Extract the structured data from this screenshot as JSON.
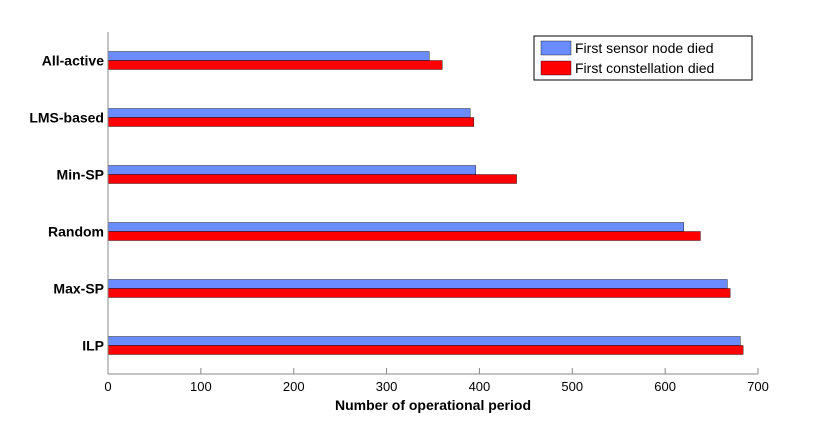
{
  "chart_data": {
    "type": "bar",
    "orientation": "horizontal",
    "categories": [
      "All-active",
      "LMS-based",
      "Min-SP",
      "Random",
      "Max-SP",
      "ILP"
    ],
    "series": [
      {
        "name": "First sensor node died",
        "color": "#6b8cff",
        "values": [
          346,
          390,
          396,
          620,
          667,
          681
        ]
      },
      {
        "name": "First constellation died",
        "color": "#ff0000",
        "values": [
          360,
          394,
          440,
          638,
          670,
          684
        ]
      }
    ],
    "xlabel": "Number of operational period",
    "ylabel": "",
    "xlim": [
      0,
      700
    ],
    "xticks": [
      0,
      100,
      200,
      300,
      400,
      500,
      600,
      700
    ],
    "grid": false,
    "legend_position": "top-right"
  }
}
